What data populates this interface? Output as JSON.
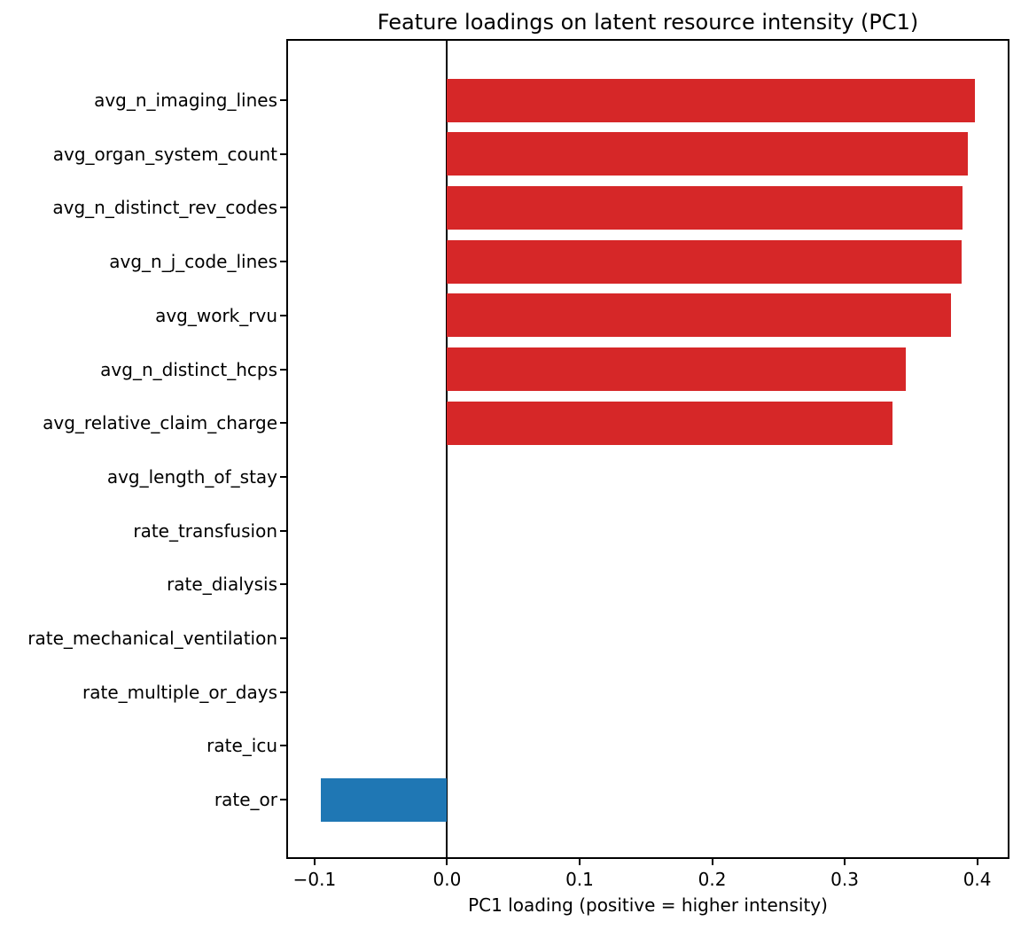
{
  "figure": {
    "background": "#ffffff"
  },
  "chart_data": {
    "type": "bar",
    "orientation": "horizontal",
    "title": "Feature loadings on latent resource intensity (PC1)",
    "xlabel": "PC1 loading (positive = higher intensity)",
    "ylabel": "",
    "categories": [
      "avg_n_imaging_lines",
      "avg_organ_system_count",
      "avg_n_distinct_rev_codes",
      "avg_n_j_code_lines",
      "avg_work_rvu",
      "avg_n_distinct_hcps",
      "avg_relative_claim_charge",
      "avg_length_of_stay",
      "rate_transfusion",
      "rate_dialysis",
      "rate_mechanical_ventilation",
      "rate_multiple_or_days",
      "rate_icu",
      "rate_or"
    ],
    "values": [
      0.398,
      0.393,
      0.389,
      0.388,
      0.38,
      0.346,
      0.336,
      0.0,
      0.0,
      0.0,
      0.0,
      0.0,
      0.0,
      -0.095
    ],
    "xlim": [
      -0.12,
      0.423
    ],
    "xticks": [
      -0.1,
      0.0,
      0.1,
      0.2,
      0.3,
      0.4
    ],
    "xtick_labels": [
      "−0.1",
      "0.0",
      "0.1",
      "0.2",
      "0.3",
      "0.4"
    ],
    "positive_color": "#d62728",
    "negative_color": "#1f77b4",
    "axis_color": "#000000",
    "grid": false,
    "legend": null,
    "zero_line": true,
    "bar_height_fraction": 0.8
  }
}
